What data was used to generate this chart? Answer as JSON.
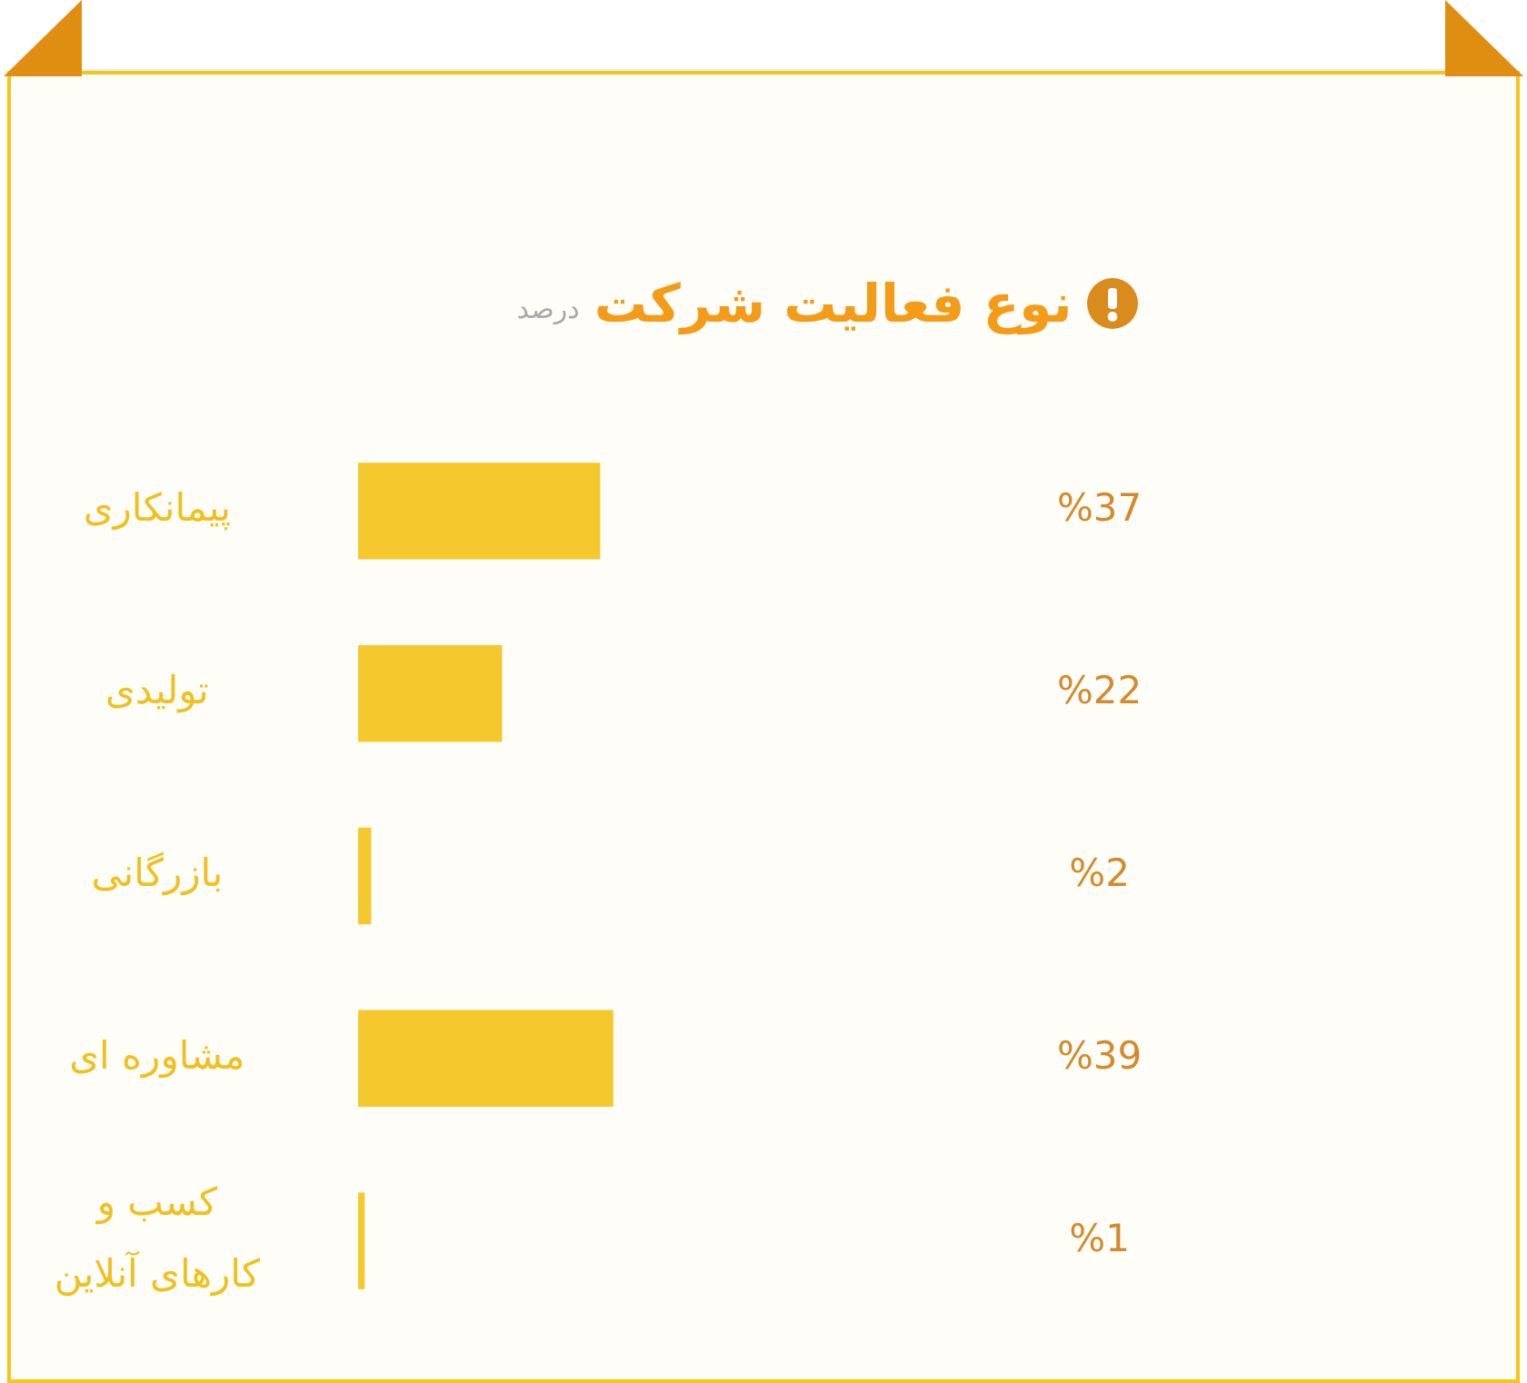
{
  "chart_data": {
    "type": "bar",
    "orientation": "horizontal",
    "title": "نوع فعالیت شرکت",
    "subtitle": "درصد",
    "categories": [
      "پیمانکاری",
      "تولیدی",
      "بازرگانی",
      "مشاوره ای",
      "کسب و کارهای آنلاین"
    ],
    "values": [
      37,
      22,
      2,
      39,
      1
    ],
    "color": "#f5c92e",
    "value_labels": [
      "%37",
      "%22",
      "%2",
      "%39",
      "%1"
    ],
    "tick_labels": "y",
    "grid": false
  }
}
